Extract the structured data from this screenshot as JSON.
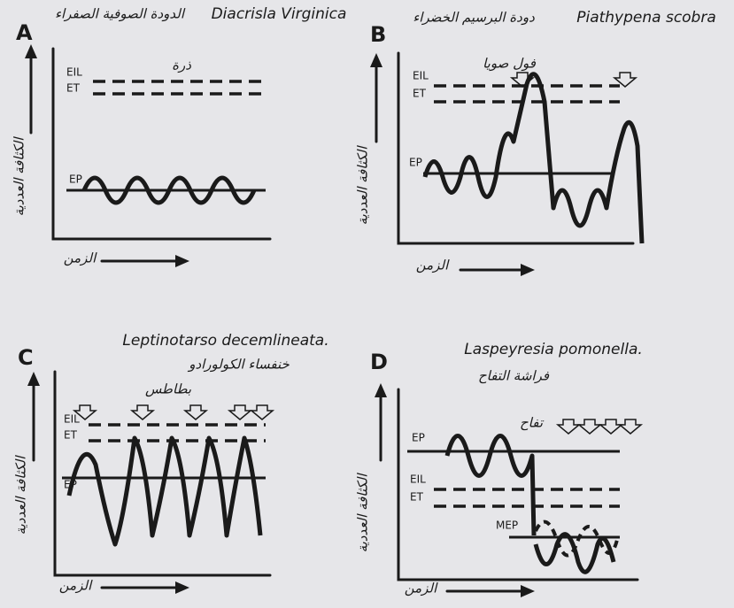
{
  "panels": [
    {
      "letter": "A",
      "latin": "Diacrisla Virginica",
      "arabic": "الدودة الصوفية الصفراء",
      "crop": "ذرة",
      "y_label": "الكثافة العددية",
      "x_label": "الزمن",
      "lines": [
        "EIL",
        "ET",
        "EP"
      ]
    },
    {
      "letter": "B",
      "latin": "Piathypena scobra",
      "arabic": "دودة البرسيم الخضراء",
      "crop": "فول صويا",
      "y_label": "الكثافة العددية",
      "x_label": "الزمن",
      "lines": [
        "EIL",
        "ET",
        "EP"
      ]
    },
    {
      "letter": "C",
      "latin": "Leptinotarso decemlineata.",
      "arabic": "خنفساء الكولورادو",
      "crop": "بطاطس",
      "y_label": "الكثافة العددية",
      "x_label": "الزمن",
      "lines": [
        "EIL",
        "ET",
        "EP"
      ]
    },
    {
      "letter": "D",
      "latin": "Laspeyresia pomonella.",
      "arabic": "فراشة التفاح",
      "crop": "تفاح",
      "y_label": "الكثافة العددية",
      "x_label": "الزمن",
      "lines": [
        "EP",
        "EIL",
        "ET",
        "MEP"
      ]
    }
  ]
}
